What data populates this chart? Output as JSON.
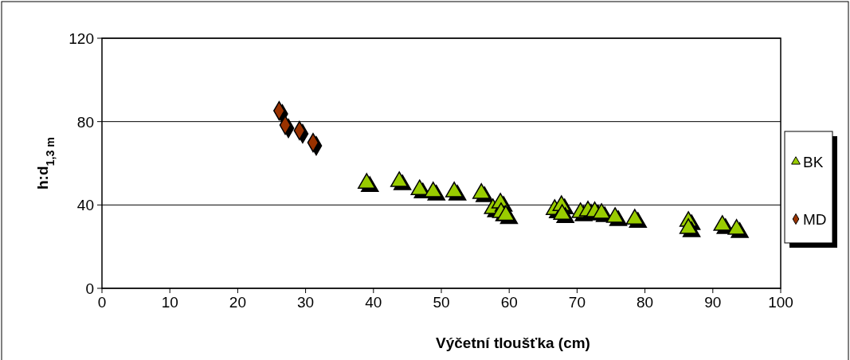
{
  "chart_data": {
    "type": "scatter",
    "xlabel": "Výčetní tloušťka (cm)",
    "ylabel": "h:d$_{1,3 m}$",
    "xlim": [
      0,
      100
    ],
    "xticks": [
      0,
      10,
      20,
      30,
      40,
      50,
      60,
      70,
      80,
      90,
      100
    ],
    "ylim": [
      0,
      120
    ],
    "yticks": [
      0,
      40,
      80,
      120
    ],
    "grid": "y",
    "legend": "right",
    "series": [
      {
        "name": "BK",
        "color": "#99cc00",
        "marker": "triangle",
        "x": [
          39,
          43.8,
          46.8,
          48.8,
          51.9,
          55.9,
          57.6,
          58.7,
          58.8,
          59.5,
          66.7,
          67.7,
          67.8,
          70.5,
          71.6,
          72.6,
          73.6,
          75.6,
          78.5,
          86.4,
          86.4,
          91.4,
          93.5
        ],
        "values": [
          50.4,
          51.2,
          47.3,
          46.3,
          46.3,
          45.5,
          38.2,
          40.9,
          36.3,
          35,
          37.8,
          39.7,
          35.5,
          36.3,
          37.1,
          36.7,
          35.9,
          34,
          33.2,
          32.1,
          28.7,
          30.2,
          28.3
        ]
      },
      {
        "name": "MD",
        "color": "#993300",
        "marker": "diamond",
        "x": [
          26.1,
          27,
          29.1,
          31.1
        ],
        "values": [
          85.2,
          78.3,
          75.7,
          69.9
        ]
      }
    ]
  }
}
